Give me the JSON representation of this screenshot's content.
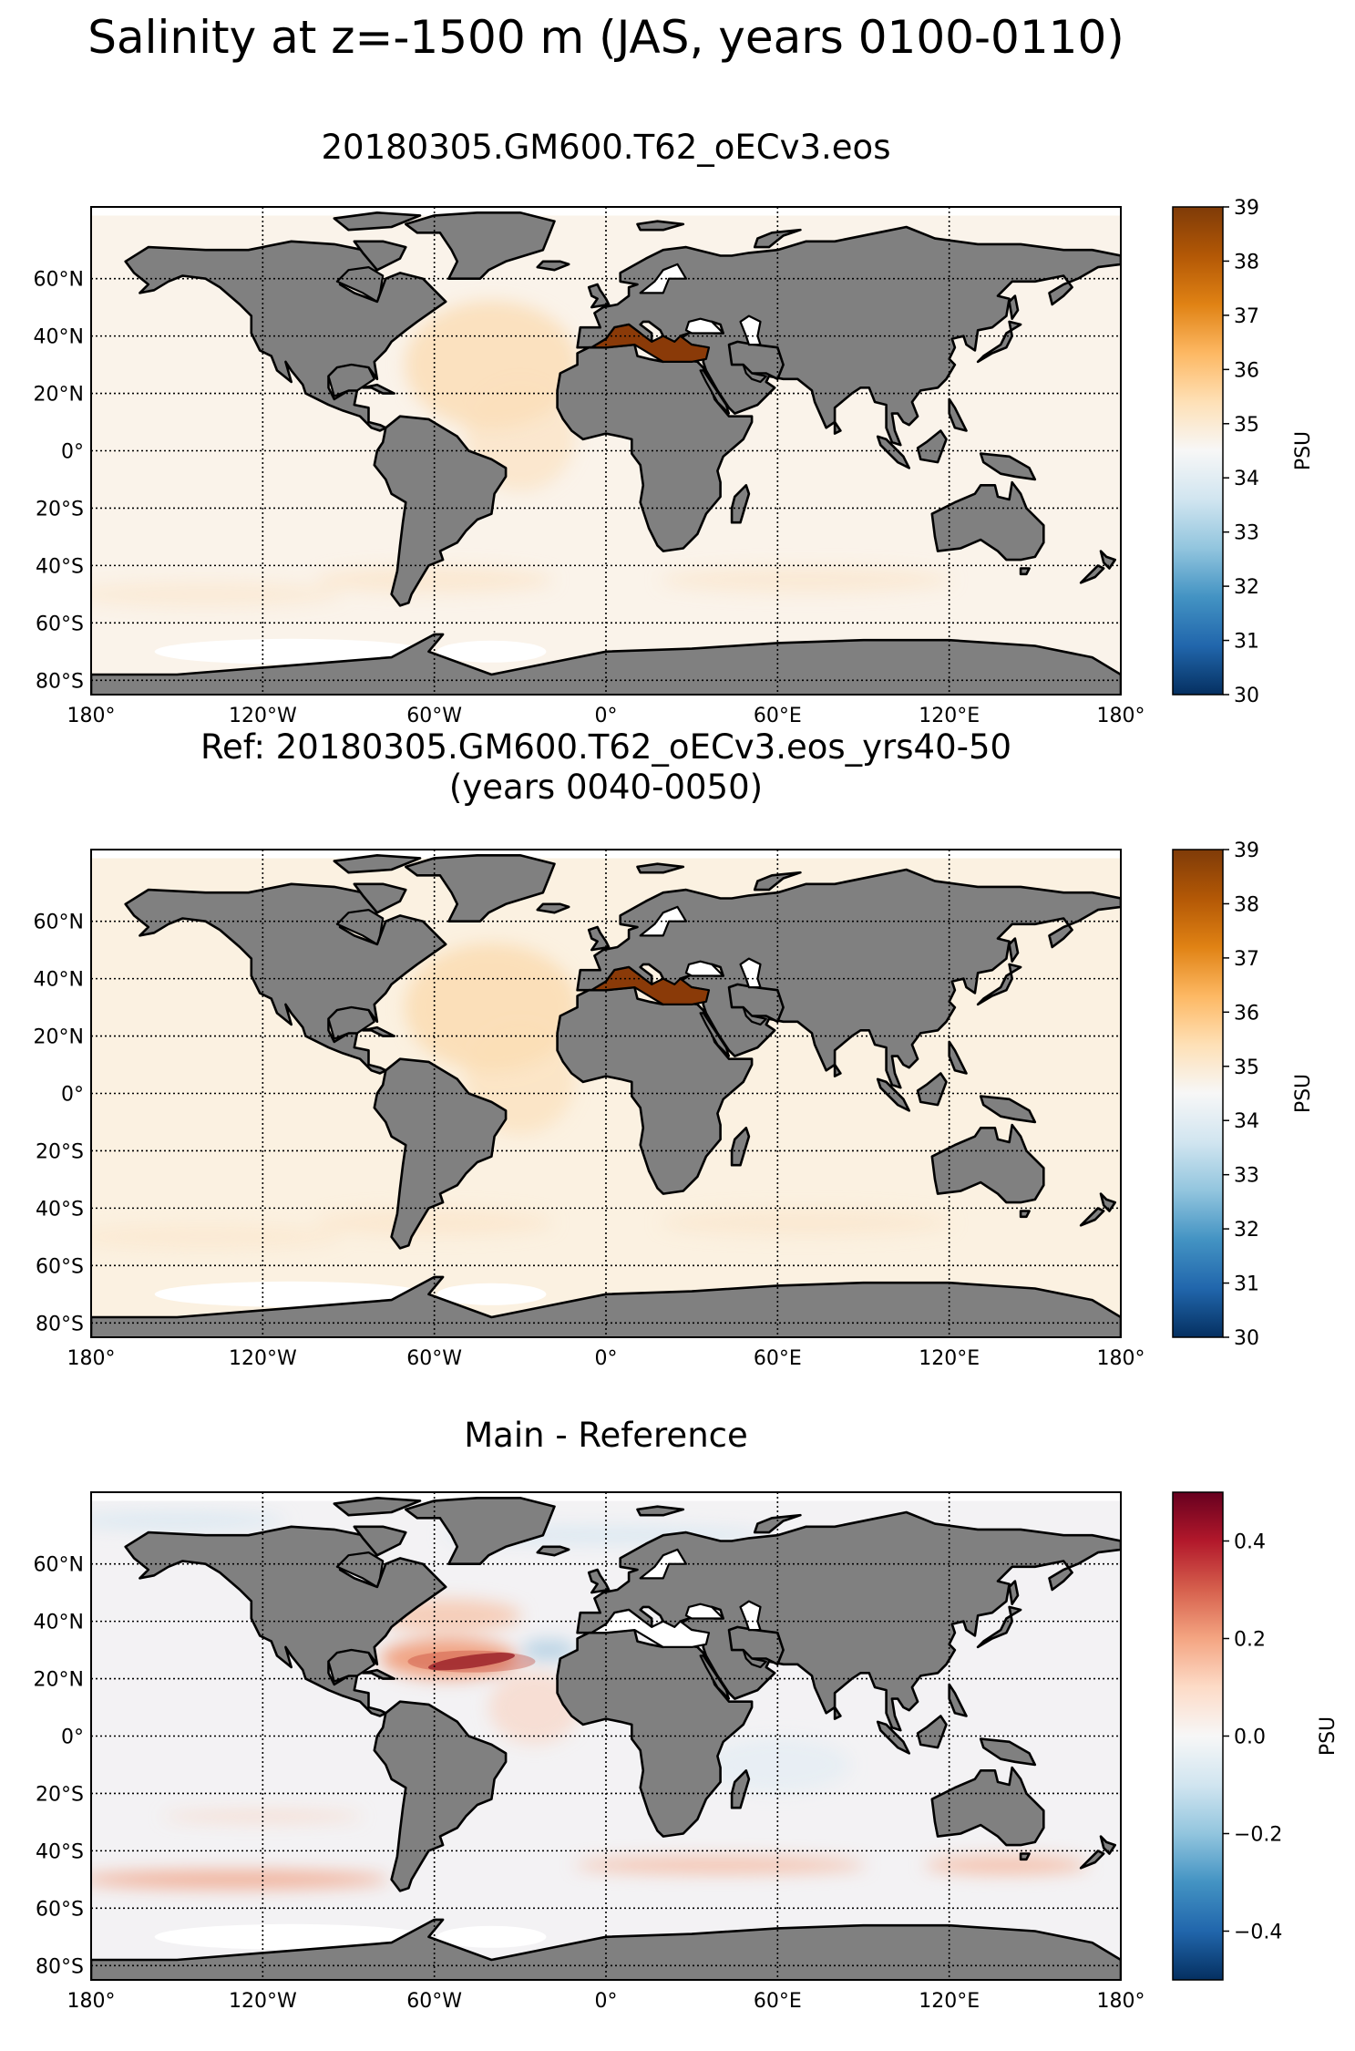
{
  "figure": {
    "title": "Salinity at z=-1500 m (JAS, years 0100-0110)"
  },
  "panels": [
    {
      "id": "main",
      "title_lines": [
        "20180305.GM600.T62_oECv3.eos"
      ],
      "colorbar": {
        "label": "PSU",
        "ticks": [
          "39",
          "38",
          "37",
          "36",
          "35",
          "34",
          "33",
          "32",
          "31",
          "30"
        ],
        "colormap": "orange-white-blue diverging",
        "range": [
          30,
          39
        ]
      }
    },
    {
      "id": "reference",
      "title_lines": [
        "Ref: 20180305.GM600.T62_oECv3.eos_yrs40-50",
        "(years 0040-0050)"
      ],
      "colorbar": {
        "label": "PSU",
        "ticks": [
          "39",
          "38",
          "37",
          "36",
          "35",
          "34",
          "33",
          "32",
          "31",
          "30"
        ],
        "colormap": "orange-white-blue diverging",
        "range": [
          30,
          39
        ]
      }
    },
    {
      "id": "difference",
      "title_lines": [
        "Main - Reference"
      ],
      "colorbar": {
        "label": "PSU",
        "ticks": [
          "0.4",
          "0.2",
          "0.0",
          "−0.2",
          "−0.4"
        ],
        "colormap": "red-white-blue diverging",
        "range": [
          -0.5,
          0.5
        ]
      }
    }
  ],
  "map": {
    "lat_labels": [
      "60°N",
      "40°N",
      "20°N",
      "0°",
      "20°S",
      "40°S",
      "60°S",
      "80°S"
    ],
    "lon_labels": [
      "180°",
      "120°W",
      "60°W",
      "0°",
      "60°E",
      "120°E",
      "180°"
    ],
    "land_color": "#808080",
    "grid": "dotted"
  }
}
